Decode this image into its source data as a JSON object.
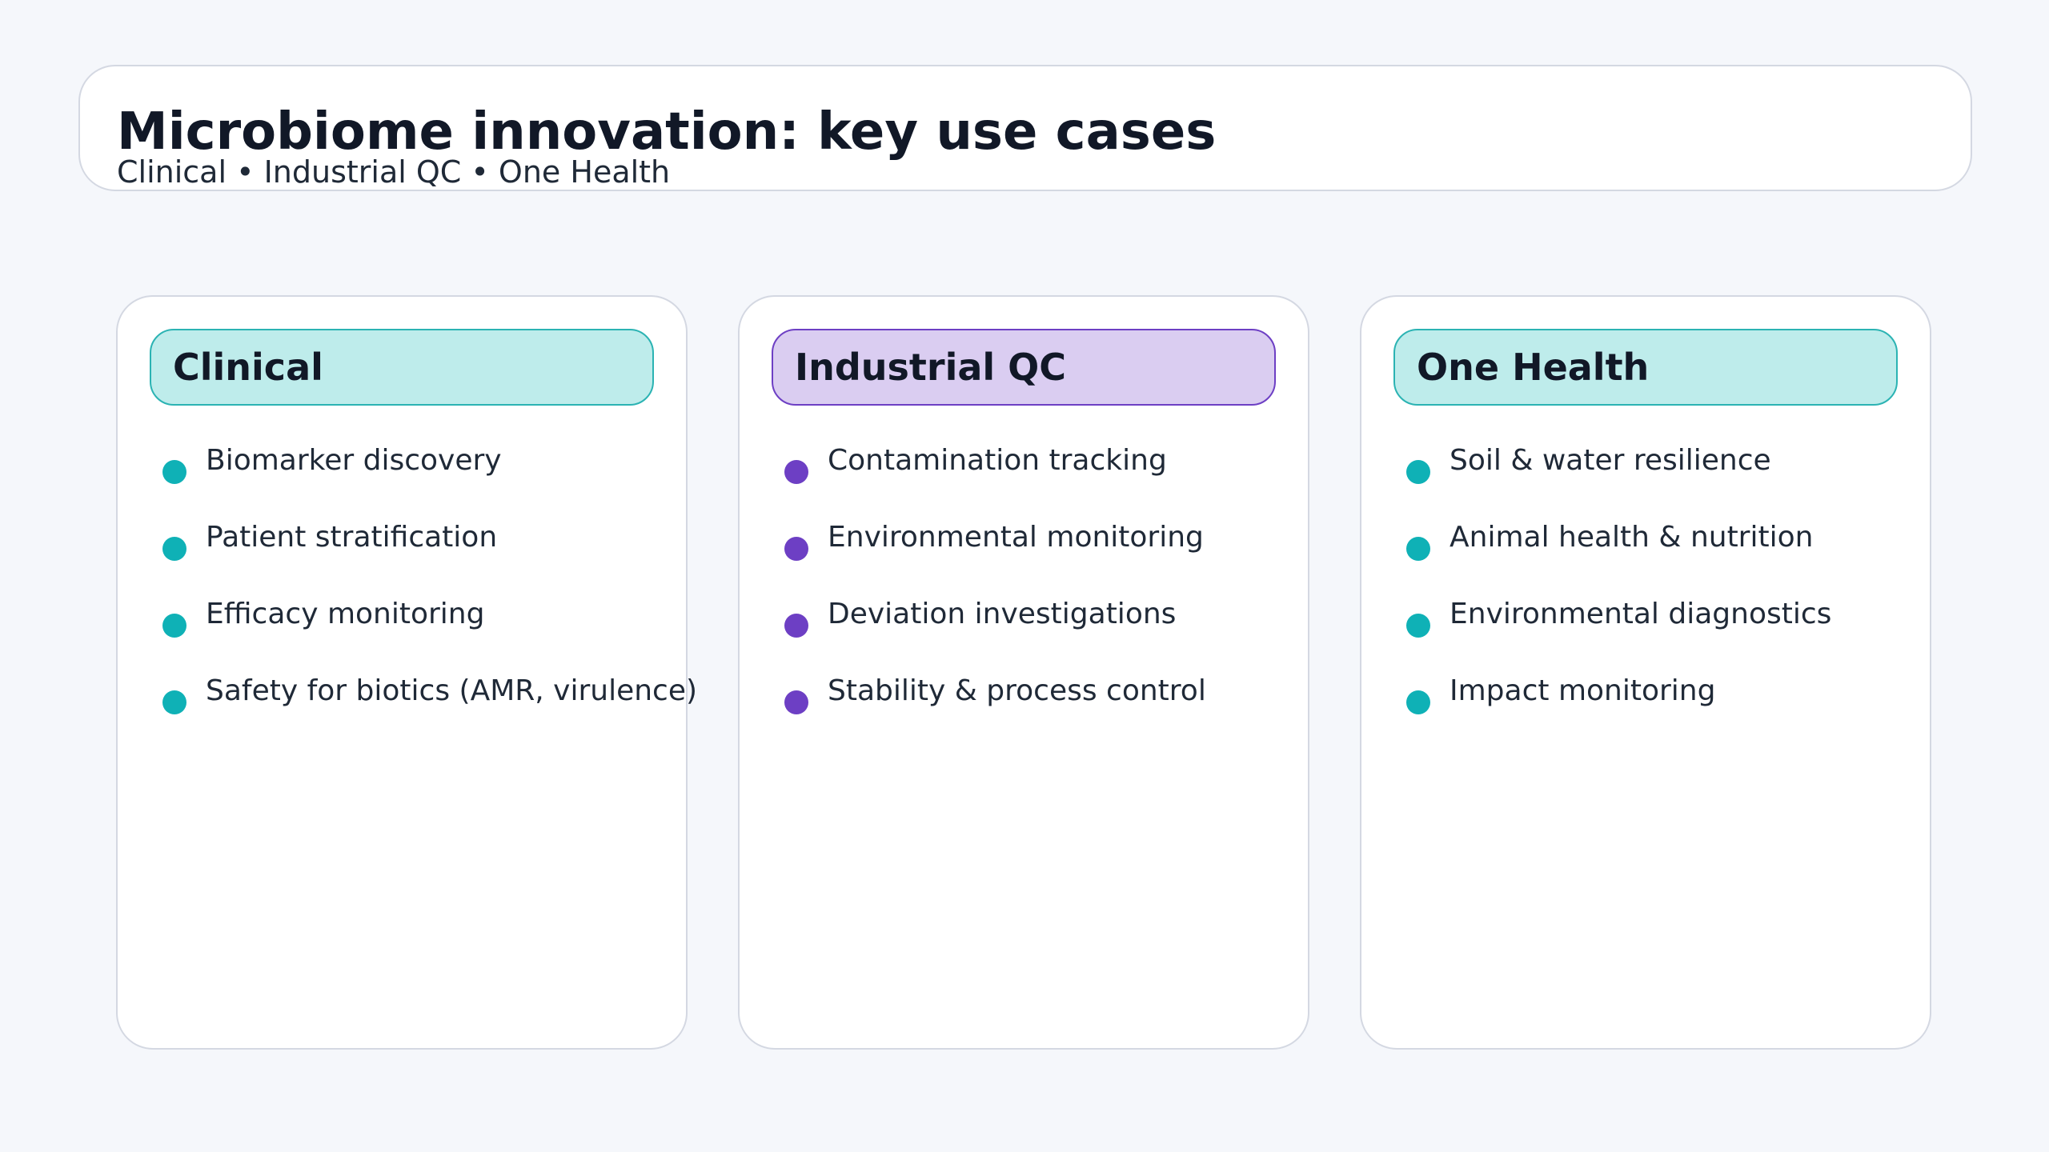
{
  "header": {
    "title": "Microbiome innovation: key use cases",
    "subtitle": "Clinical • Industrial QC • One Health"
  },
  "cards": [
    {
      "title": "Clinical",
      "accent": "#0fb1b6",
      "pill_bg": "#beeceb",
      "pill_border": "#2bb3b3",
      "items": [
        "Biomarker discovery",
        "Patient stratification",
        "Efficacy monitoring",
        "Safety for biotics (AMR, virulence)"
      ]
    },
    {
      "title": "Industrial QC",
      "accent": "#6d3fc4",
      "pill_bg": "#dacdf1",
      "pill_border": "#6d3fc4",
      "items": [
        "Contamination tracking",
        "Environmental monitoring",
        "Deviation investigations",
        "Stability & process control"
      ]
    },
    {
      "title": "One Health",
      "accent": "#0fb1b6",
      "pill_bg": "#beeceb",
      "pill_border": "#2bb3b3",
      "items": [
        "Soil & water resilience",
        "Animal health & nutrition",
        "Environmental diagnostics",
        "Impact monitoring"
      ]
    }
  ]
}
